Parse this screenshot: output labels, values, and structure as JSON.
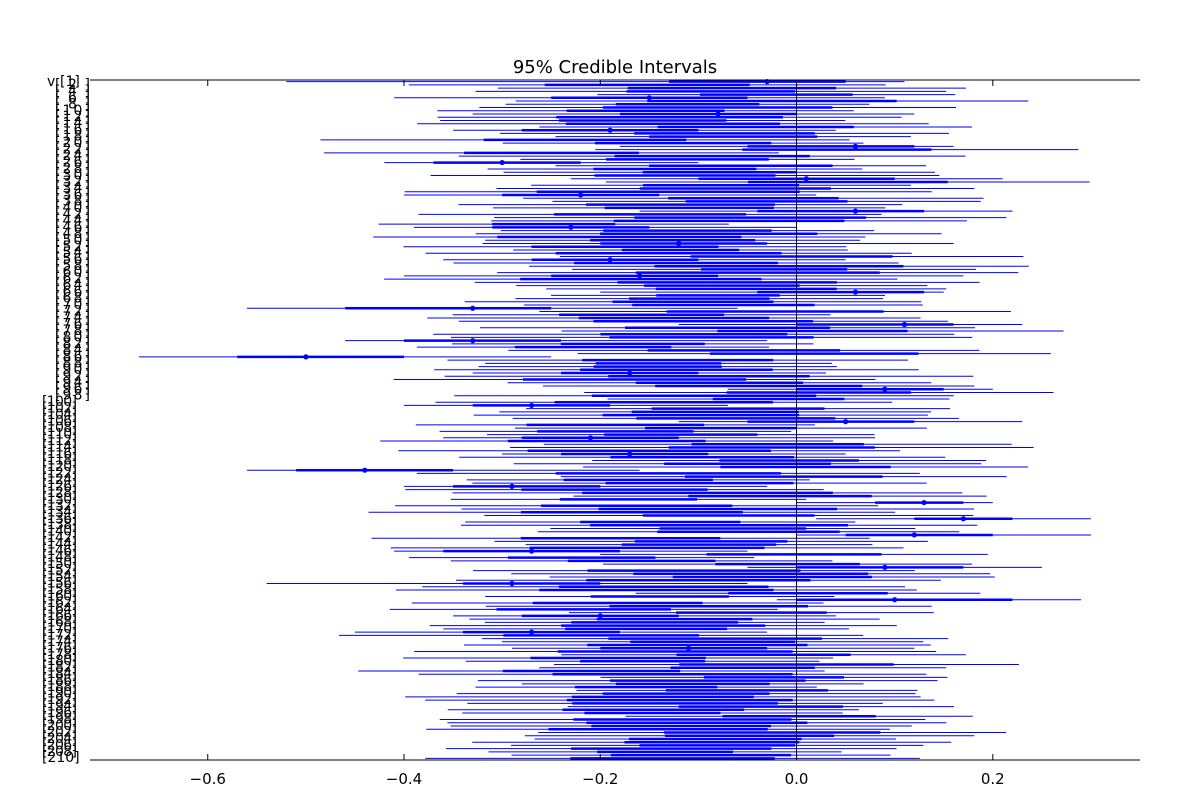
{
  "chart_data": {
    "type": "forest",
    "title": "95% Credible Intervals",
    "xlabel": "",
    "ylabel": "",
    "xlim": [
      -0.72,
      0.35
    ],
    "xticks": [
      -0.6,
      -0.4,
      -0.2,
      0.0,
      0.2
    ],
    "xtick_labels": [
      "−0.6",
      "−0.4",
      "−0.2",
      "0.0",
      "0.2"
    ],
    "reference_line_x": 0.0,
    "grid": false,
    "legend": "none",
    "series_color": "#0000ff",
    "parameter_label_first": "v",
    "parameter_label_last": "[210]",
    "group_label_first": "[1]",
    "n_parameters": 210,
    "sample_intervals": [
      {
        "label": "v [1]",
        "mean": -0.03,
        "inner": [
          -0.13,
          0.05
        ],
        "outer": [
          -0.52,
          0.11
        ]
      },
      {
        "label": "[2]",
        "mean": -0.15,
        "inner": [
          -0.25,
          -0.05
        ],
        "outer": [
          -0.41,
          0.09
        ]
      },
      {
        "label": "[3]",
        "mean": -0.08,
        "inner": [
          -0.18,
          0.0
        ],
        "outer": [
          -0.33,
          0.12
        ]
      },
      {
        "label": "[4]",
        "mean": -0.19,
        "inner": [
          -0.28,
          -0.1
        ],
        "outer": [
          -0.35,
          0.04
        ]
      },
      {
        "label": "[5]",
        "mean": 0.06,
        "inner": [
          -0.05,
          0.12
        ],
        "outer": [
          -0.18,
          0.16
        ]
      },
      {
        "label": "[6]",
        "mean": -0.3,
        "inner": [
          -0.37,
          -0.22
        ],
        "outer": [
          -0.42,
          -0.1
        ]
      },
      {
        "label": "[7]",
        "mean": 0.01,
        "inner": [
          -0.1,
          0.1
        ],
        "outer": [
          -0.23,
          0.21
        ]
      },
      {
        "label": "[8]",
        "mean": -0.22,
        "inner": [
          -0.3,
          -0.14
        ],
        "outer": [
          -0.4,
          0.02
        ]
      },
      {
        "label": "[9]",
        "mean": 0.06,
        "inner": [
          -0.04,
          0.13
        ],
        "outer": [
          -0.16,
          0.22
        ]
      },
      {
        "label": "[10]",
        "mean": -0.23,
        "inner": [
          -0.31,
          -0.15
        ],
        "outer": [
          -0.39,
          0.0
        ]
      },
      {
        "label": "[11]",
        "mean": -0.12,
        "inner": [
          -0.2,
          -0.03
        ],
        "outer": [
          -0.32,
          0.16
        ]
      },
      {
        "label": "[12]",
        "mean": -0.19,
        "inner": [
          -0.27,
          -0.1
        ],
        "outer": [
          -0.36,
          0.05
        ]
      },
      {
        "label": "[13]",
        "mean": -0.16,
        "inner": [
          -0.25,
          -0.08
        ],
        "outer": [
          -0.4,
          0.17
        ]
      },
      {
        "label": "[14]",
        "mean": 0.06,
        "inner": [
          -0.04,
          0.13
        ],
        "outer": [
          -0.2,
          0.15
        ]
      },
      {
        "label": "[15]",
        "mean": -0.33,
        "inner": [
          -0.46,
          -0.25
        ],
        "outer": [
          -0.56,
          -0.06
        ]
      },
      {
        "label": "[16]",
        "mean": 0.11,
        "inner": [
          0.0,
          0.16
        ],
        "outer": [
          -0.12,
          0.23
        ]
      },
      {
        "label": "[17]",
        "mean": -0.33,
        "inner": [
          -0.4,
          -0.24
        ],
        "outer": [
          -0.46,
          -0.03
        ]
      },
      {
        "label": "[18]",
        "mean": -0.5,
        "inner": [
          -0.57,
          -0.4
        ],
        "outer": [
          -0.67,
          -0.25
        ]
      },
      {
        "label": "[19]",
        "mean": -0.17,
        "inner": [
          -0.24,
          -0.1
        ],
        "outer": [
          -0.33,
          0.03
        ]
      },
      {
        "label": "[20]",
        "mean": 0.09,
        "inner": [
          0.0,
          0.15
        ],
        "outer": [
          -0.07,
          0.2
        ]
      },
      {
        "label": "[21]",
        "mean": -0.27,
        "inner": [
          -0.33,
          -0.19
        ],
        "outer": [
          -0.4,
          -0.07
        ]
      },
      {
        "label": "[22]",
        "mean": 0.05,
        "inner": [
          -0.05,
          0.12
        ],
        "outer": [
          -0.12,
          0.23
        ]
      },
      {
        "label": "[23]",
        "mean": -0.21,
        "inner": [
          -0.28,
          -0.12
        ],
        "outer": [
          -0.36,
          0.08
        ]
      },
      {
        "label": "[24]",
        "mean": -0.17,
        "inner": [
          -0.24,
          -0.09
        ],
        "outer": [
          -0.3,
          0.05
        ]
      },
      {
        "label": "[25]",
        "mean": -0.44,
        "inner": [
          -0.51,
          -0.35
        ],
        "outer": [
          -0.56,
          -0.16
        ]
      },
      {
        "label": "[26]",
        "mean": -0.29,
        "inner": [
          -0.35,
          -0.2
        ],
        "outer": [
          -0.4,
          -0.03
        ]
      },
      {
        "label": "[27]",
        "mean": 0.13,
        "inner": [
          0.08,
          0.17
        ],
        "outer": [
          0.0,
          0.2
        ]
      },
      {
        "label": "[28]",
        "mean": 0.17,
        "inner": [
          0.12,
          0.22
        ],
        "outer": [
          0.02,
          0.3
        ]
      },
      {
        "label": "[29]",
        "mean": 0.12,
        "inner": [
          0.05,
          0.2
        ],
        "outer": [
          0.0,
          0.3
        ]
      },
      {
        "label": "[30]",
        "mean": -0.27,
        "inner": [
          -0.36,
          -0.18
        ],
        "outer": [
          -0.41,
          -0.05
        ]
      },
      {
        "label": "[31]",
        "mean": 0.09,
        "inner": [
          0.0,
          0.17
        ],
        "outer": [
          -0.05,
          0.25
        ]
      },
      {
        "label": "[32]",
        "mean": -0.29,
        "inner": [
          -0.34,
          -0.2
        ],
        "outer": [
          -0.54,
          -0.05
        ]
      },
      {
        "label": "[33]",
        "mean": 0.1,
        "inner": [
          0.0,
          0.22
        ],
        "outer": [
          -0.02,
          0.29
        ]
      },
      {
        "label": "[34]",
        "mean": -0.2,
        "inner": [
          -0.28,
          -0.12
        ],
        "outer": [
          -0.35,
          0.04
        ]
      },
      {
        "label": "[35]",
        "mean": -0.27,
        "inner": [
          -0.34,
          -0.18
        ],
        "outer": [
          -0.45,
          -0.03
        ]
      },
      {
        "label": "[36]",
        "mean": -0.11,
        "inner": [
          -0.2,
          -0.03
        ],
        "outer": [
          -0.29,
          0.12
        ]
      }
    ]
  }
}
